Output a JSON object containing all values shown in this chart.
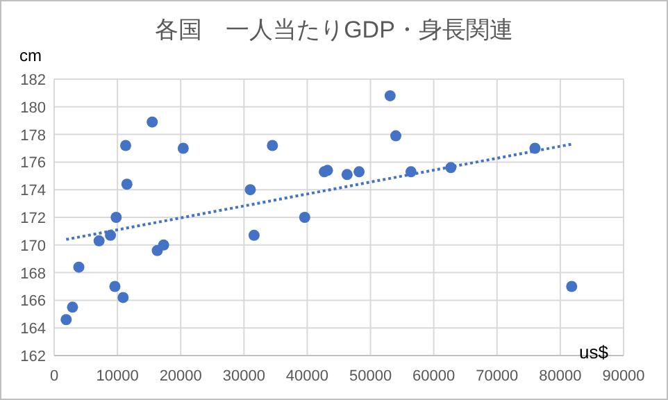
{
  "chart_data": {
    "type": "scatter",
    "title": "各国　一人当たりGDP・身長関連",
    "xlabel": "us$",
    "ylabel": "cm",
    "xlim": [
      0,
      90000
    ],
    "xticks": [
      0,
      10000,
      20000,
      30000,
      40000,
      50000,
      60000,
      70000,
      80000,
      90000
    ],
    "ylim": [
      162,
      182
    ],
    "yticks": [
      162,
      164,
      166,
      168,
      170,
      172,
      174,
      176,
      178,
      180,
      182
    ],
    "grid": true,
    "series": [
      {
        "color": "#4472c4",
        "marker": "circle",
        "x": [
          1900,
          2900,
          3900,
          7100,
          8900,
          9800,
          9600,
          10900,
          11300,
          11500,
          15500,
          16300,
          17300,
          20400,
          31000,
          31600,
          34500,
          39600,
          42700,
          43200,
          46300,
          48200,
          53100,
          54000,
          56400,
          62700,
          76000,
          81800
        ],
        "values": [
          164.6,
          165.5,
          168.4,
          170.3,
          170.7,
          172.0,
          167.0,
          166.2,
          177.2,
          174.4,
          178.9,
          169.6,
          170.0,
          177.0,
          174.0,
          170.7,
          177.2,
          172.0,
          175.3,
          175.4,
          175.1,
          175.3,
          180.8,
          177.9,
          175.3,
          175.6,
          177.0,
          167.0
        ]
      },
      {
        "type": "line",
        "color": "#4472c4",
        "line_style": "dotted",
        "x": [
          1900,
          81800
        ],
        "values": [
          170.4,
          177.3
        ]
      }
    ]
  }
}
